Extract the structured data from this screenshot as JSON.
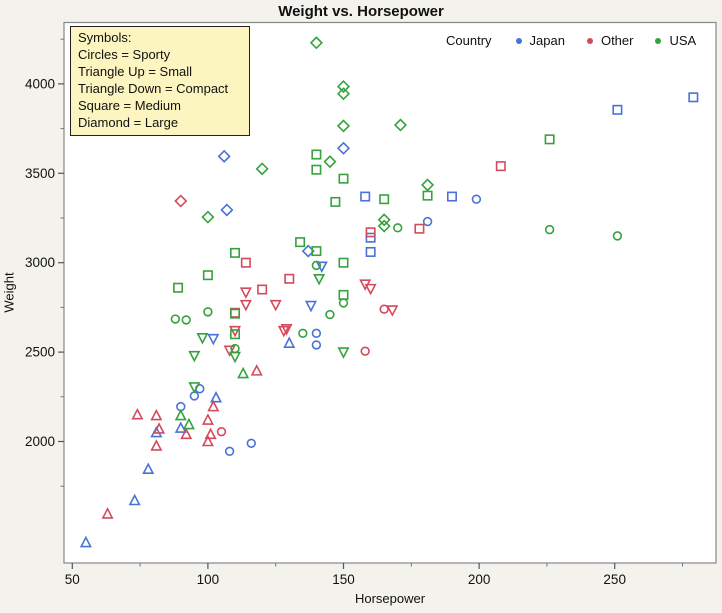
{
  "title": "Weight vs. Horsepower",
  "symbols_note": {
    "heading": "Symbols:",
    "lines": [
      "Circles = Sporty",
      "Triangle Up = Small",
      "Triangle Down = Compact",
      "Square = Medium",
      "Diamond = Large"
    ]
  },
  "legend": {
    "label": "Country",
    "entries": [
      {
        "name": "Japan",
        "color": "#4a72d6"
      },
      {
        "name": "Other",
        "color": "#d44a5c"
      },
      {
        "name": "USA",
        "color": "#35a23c"
      }
    ]
  },
  "axes": {
    "x": {
      "label": "Horsepower",
      "ticks": [
        50,
        100,
        150,
        200,
        250
      ],
      "minor_ticks": [
        75,
        125,
        175,
        225,
        275
      ]
    },
    "y": {
      "label": "Weight",
      "ticks": [
        2000,
        2500,
        3000,
        3500,
        4000
      ],
      "minor_ticks": [
        1750,
        2250,
        2750,
        3250,
        3750,
        4250
      ]
    }
  },
  "chart_data": {
    "type": "scatter",
    "title": "Weight vs. Horsepower",
    "xlabel": "Horsepower",
    "ylabel": "Weight",
    "xlim": [
      48,
      288
    ],
    "ylim": [
      1320,
      4350
    ],
    "grid": false,
    "legend_position": "top-right-inside",
    "shape_map": {
      "Sporty": "circle",
      "Small": "triangle-up",
      "Compact": "triangle-down",
      "Medium": "square",
      "Large": "diamond"
    },
    "color_map": {
      "Japan": "#4a72d6",
      "Other": "#d44a5c",
      "USA": "#35a23c"
    },
    "columns": [
      "horsepower",
      "weight",
      "country",
      "type"
    ],
    "points": [
      [
        150,
        3640,
        "Japan",
        "Large"
      ],
      [
        106,
        3595,
        "Japan",
        "Large"
      ],
      [
        107,
        3295,
        "Japan",
        "Large"
      ],
      [
        137,
        3065,
        "Japan",
        "Large"
      ],
      [
        279,
        3925,
        "Japan",
        "Medium"
      ],
      [
        251,
        3855,
        "Japan",
        "Medium"
      ],
      [
        190,
        3370,
        "Japan",
        "Medium"
      ],
      [
        158,
        3370,
        "Japan",
        "Medium"
      ],
      [
        160,
        3140,
        "Japan",
        "Medium"
      ],
      [
        160,
        3060,
        "Japan",
        "Medium"
      ],
      [
        199,
        3355,
        "Japan",
        "Sporty"
      ],
      [
        181,
        3230,
        "Japan",
        "Sporty"
      ],
      [
        140,
        2605,
        "Japan",
        "Sporty"
      ],
      [
        140,
        2540,
        "Japan",
        "Sporty"
      ],
      [
        116,
        1990,
        "Japan",
        "Sporty"
      ],
      [
        108,
        1945,
        "Japan",
        "Sporty"
      ],
      [
        97,
        2295,
        "Japan",
        "Sporty"
      ],
      [
        95,
        2255,
        "Japan",
        "Sporty"
      ],
      [
        90,
        2195,
        "Japan",
        "Sporty"
      ],
      [
        142,
        2980,
        "Japan",
        "Compact"
      ],
      [
        138,
        2760,
        "Japan",
        "Compact"
      ],
      [
        102,
        2575,
        "Japan",
        "Compact"
      ],
      [
        130,
        2550,
        "Japan",
        "Small"
      ],
      [
        103,
        2245,
        "Japan",
        "Small"
      ],
      [
        90,
        2075,
        "Japan",
        "Small"
      ],
      [
        81,
        2050,
        "Japan",
        "Small"
      ],
      [
        78,
        1845,
        "Japan",
        "Small"
      ],
      [
        73,
        1670,
        "Japan",
        "Small"
      ],
      [
        55,
        1435,
        "Japan",
        "Small"
      ],
      [
        90,
        3345,
        "Other",
        "Large"
      ],
      [
        208,
        3540,
        "Other",
        "Medium"
      ],
      [
        178,
        3190,
        "Other",
        "Medium"
      ],
      [
        160,
        3170,
        "Other",
        "Medium"
      ],
      [
        130,
        2910,
        "Other",
        "Medium"
      ],
      [
        120,
        2850,
        "Other",
        "Medium"
      ],
      [
        114,
        3000,
        "Other",
        "Medium"
      ],
      [
        110,
        2720,
        "Other",
        "Medium"
      ],
      [
        165,
        2740,
        "Other",
        "Sporty"
      ],
      [
        158,
        2505,
        "Other",
        "Sporty"
      ],
      [
        105,
        2055,
        "Other",
        "Sporty"
      ],
      [
        168,
        2735,
        "Other",
        "Compact"
      ],
      [
        160,
        2855,
        "Other",
        "Compact"
      ],
      [
        158,
        2880,
        "Other",
        "Compact"
      ],
      [
        129,
        2630,
        "Other",
        "Compact"
      ],
      [
        128,
        2620,
        "Other",
        "Compact"
      ],
      [
        125,
        2765,
        "Other",
        "Compact"
      ],
      [
        114,
        2835,
        "Other",
        "Compact"
      ],
      [
        114,
        2765,
        "Other",
        "Compact"
      ],
      [
        110,
        2620,
        "Other",
        "Compact"
      ],
      [
        108,
        2510,
        "Other",
        "Compact"
      ],
      [
        118,
        2395,
        "Other",
        "Small"
      ],
      [
        102,
        2195,
        "Other",
        "Small"
      ],
      [
        101,
        2040,
        "Other",
        "Small"
      ],
      [
        100,
        2120,
        "Other",
        "Small"
      ],
      [
        100,
        2000,
        "Other",
        "Small"
      ],
      [
        92,
        2040,
        "Other",
        "Small"
      ],
      [
        82,
        2070,
        "Other",
        "Small"
      ],
      [
        81,
        2145,
        "Other",
        "Small"
      ],
      [
        81,
        1975,
        "Other",
        "Small"
      ],
      [
        74,
        2150,
        "Other",
        "Small"
      ],
      [
        63,
        1595,
        "Other",
        "Small"
      ],
      [
        140,
        4230,
        "USA",
        "Large"
      ],
      [
        150,
        3985,
        "USA",
        "Large"
      ],
      [
        150,
        3945,
        "USA",
        "Large"
      ],
      [
        171,
        3770,
        "USA",
        "Large"
      ],
      [
        150,
        3765,
        "USA",
        "Large"
      ],
      [
        181,
        3435,
        "USA",
        "Large"
      ],
      [
        145,
        3565,
        "USA",
        "Large"
      ],
      [
        120,
        3525,
        "USA",
        "Large"
      ],
      [
        100,
        3255,
        "USA",
        "Large"
      ],
      [
        165,
        3240,
        "USA",
        "Large"
      ],
      [
        165,
        3205,
        "USA",
        "Large"
      ],
      [
        226,
        3690,
        "USA",
        "Medium"
      ],
      [
        181,
        3375,
        "USA",
        "Medium"
      ],
      [
        165,
        3355,
        "USA",
        "Medium"
      ],
      [
        150,
        3470,
        "USA",
        "Medium"
      ],
      [
        147,
        3340,
        "USA",
        "Medium"
      ],
      [
        140,
        3605,
        "USA",
        "Medium"
      ],
      [
        140,
        3520,
        "USA",
        "Medium"
      ],
      [
        150,
        3000,
        "USA",
        "Medium"
      ],
      [
        150,
        2820,
        "USA",
        "Medium"
      ],
      [
        140,
        3065,
        "USA",
        "Medium"
      ],
      [
        134,
        3115,
        "USA",
        "Medium"
      ],
      [
        110,
        3055,
        "USA",
        "Medium"
      ],
      [
        110,
        2715,
        "USA",
        "Medium"
      ],
      [
        110,
        2600,
        "USA",
        "Medium"
      ],
      [
        100,
        2930,
        "USA",
        "Medium"
      ],
      [
        89,
        2860,
        "USA",
        "Medium"
      ],
      [
        251,
        3150,
        "USA",
        "Sporty"
      ],
      [
        226,
        3185,
        "USA",
        "Sporty"
      ],
      [
        170,
        3195,
        "USA",
        "Sporty"
      ],
      [
        150,
        2775,
        "USA",
        "Sporty"
      ],
      [
        145,
        2710,
        "USA",
        "Sporty"
      ],
      [
        140,
        2985,
        "USA",
        "Sporty"
      ],
      [
        135,
        2605,
        "USA",
        "Sporty"
      ],
      [
        110,
        2520,
        "USA",
        "Sporty"
      ],
      [
        100,
        2725,
        "USA",
        "Sporty"
      ],
      [
        92,
        2680,
        "USA",
        "Sporty"
      ],
      [
        88,
        2685,
        "USA",
        "Sporty"
      ],
      [
        150,
        2500,
        "USA",
        "Compact"
      ],
      [
        141,
        2910,
        "USA",
        "Compact"
      ],
      [
        110,
        2475,
        "USA",
        "Compact"
      ],
      [
        98,
        2580,
        "USA",
        "Compact"
      ],
      [
        95,
        2480,
        "USA",
        "Compact"
      ],
      [
        95,
        2305,
        "USA",
        "Compact"
      ],
      [
        113,
        2380,
        "USA",
        "Small"
      ],
      [
        93,
        2095,
        "USA",
        "Small"
      ],
      [
        90,
        2145,
        "USA",
        "Small"
      ]
    ]
  }
}
